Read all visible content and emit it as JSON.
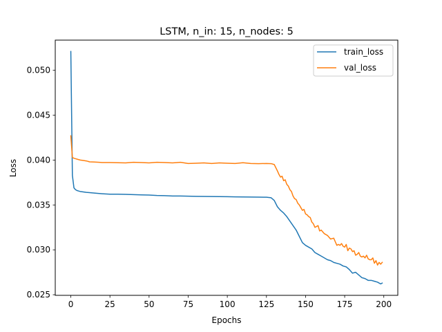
{
  "chart_data": {
    "type": "line",
    "title": "LSTM, n_in: 15, n_nodes: 5",
    "xlabel": "Epochs",
    "ylabel": "Loss",
    "xlim": [
      -9.95,
      208.95
    ],
    "ylim": [
      0.02493,
      0.05336
    ],
    "xticks": [
      0,
      25,
      50,
      75,
      100,
      125,
      150,
      175,
      200
    ],
    "yticks": [
      0.025,
      0.03,
      0.035,
      0.04,
      0.045,
      0.05
    ],
    "ytick_labels": [
      "0.025",
      "0.030",
      "0.035",
      "0.040",
      "0.045",
      "0.050"
    ],
    "grid": false,
    "legend_position": "upper right",
    "series": [
      {
        "name": "train_loss",
        "color": "#1f77b4",
        "x": [
          0,
          1,
          2,
          3,
          4,
          5,
          6,
          8,
          10,
          15,
          20,
          25,
          30,
          35,
          40,
          45,
          50,
          55,
          60,
          65,
          70,
          75,
          80,
          85,
          90,
          95,
          100,
          105,
          110,
          115,
          120,
          125,
          128,
          130,
          132,
          134,
          136,
          138,
          140,
          142,
          144,
          146,
          148,
          150,
          152,
          154,
          156,
          158,
          160,
          162,
          164,
          166,
          168,
          170,
          172,
          174,
          176,
          178,
          180,
          182,
          184,
          186,
          188,
          190,
          192,
          194,
          196,
          198,
          199
        ],
        "y": [
          0.0521,
          0.0383,
          0.0369,
          0.0367,
          0.0366,
          0.03655,
          0.0365,
          0.03645,
          0.0364,
          0.03632,
          0.03625,
          0.0362,
          0.0362,
          0.03618,
          0.03615,
          0.03612,
          0.0361,
          0.03605,
          0.03603,
          0.036,
          0.036,
          0.03598,
          0.03596,
          0.03595,
          0.03594,
          0.03593,
          0.03592,
          0.0359,
          0.03589,
          0.03588,
          0.03587,
          0.03586,
          0.0358,
          0.0355,
          0.0348,
          0.0344,
          0.0341,
          0.0337,
          0.0332,
          0.0327,
          0.0322,
          0.0315,
          0.0308,
          0.0305,
          0.0303,
          0.0301,
          0.0297,
          0.0295,
          0.0293,
          0.0291,
          0.0289,
          0.0288,
          0.0286,
          0.0285,
          0.0284,
          0.0282,
          0.0281,
          0.0278,
          0.0274,
          0.0275,
          0.0272,
          0.0269,
          0.0268,
          0.0266,
          0.0266,
          0.0265,
          0.0264,
          0.0262,
          0.0263
        ]
      },
      {
        "name": "val_loss",
        "color": "#ff7f0e",
        "x": [
          0,
          1,
          2,
          3,
          4,
          5,
          6,
          8,
          10,
          12,
          15,
          18,
          20,
          25,
          30,
          35,
          40,
          45,
          50,
          55,
          60,
          65,
          70,
          75,
          80,
          85,
          90,
          95,
          100,
          105,
          110,
          115,
          120,
          125,
          128,
          130,
          132,
          133,
          134,
          135,
          136,
          137,
          138,
          139,
          140,
          141,
          142,
          143,
          144,
          145,
          146,
          147,
          148,
          149,
          150,
          151,
          152,
          153,
          154,
          155,
          156,
          157,
          158,
          159,
          160,
          162,
          164,
          166,
          168,
          169,
          170,
          171,
          172,
          173,
          174,
          175,
          176,
          177,
          178,
          179,
          180,
          181,
          182,
          183,
          184,
          185,
          186,
          187,
          188,
          189,
          190,
          191,
          192,
          193,
          194,
          195,
          196,
          197,
          198,
          199
        ],
        "y": [
          0.0427,
          0.0403,
          0.0402,
          0.04015,
          0.0401,
          0.04005,
          0.04,
          0.03995,
          0.0399,
          0.0398,
          0.03978,
          0.03975,
          0.03972,
          0.03972,
          0.0397,
          0.03968,
          0.03975,
          0.03972,
          0.03968,
          0.03975,
          0.03972,
          0.03968,
          0.03975,
          0.03962,
          0.03965,
          0.03968,
          0.03962,
          0.03968,
          0.03965,
          0.03962,
          0.0397,
          0.03962,
          0.0396,
          0.03962,
          0.0396,
          0.0395,
          0.0388,
          0.0384,
          0.0381,
          0.0382,
          0.0377,
          0.0378,
          0.0373,
          0.0371,
          0.0367,
          0.0365,
          0.036,
          0.0357,
          0.0356,
          0.0352,
          0.035,
          0.0347,
          0.0344,
          0.0345,
          0.034,
          0.0339,
          0.0337,
          0.0336,
          0.0331,
          0.0329,
          0.0325,
          0.0326,
          0.0327,
          0.0321,
          0.0322,
          0.0318,
          0.0316,
          0.0312,
          0.0313,
          0.0309,
          0.0305,
          0.0306,
          0.0305,
          0.0307,
          0.0304,
          0.0303,
          0.0306,
          0.0299,
          0.0302,
          0.0301,
          0.0298,
          0.0299,
          0.0294,
          0.0295,
          0.0297,
          0.0293,
          0.0292,
          0.0293,
          0.0291,
          0.0294,
          0.029,
          0.0289,
          0.0289,
          0.0291,
          0.0285,
          0.0288,
          0.0283,
          0.0286,
          0.0284,
          0.0286
        ]
      }
    ]
  }
}
